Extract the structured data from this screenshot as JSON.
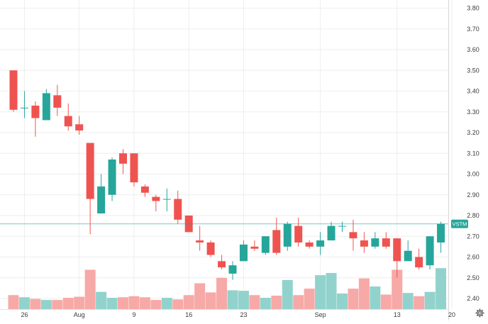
{
  "colors": {
    "up": "#26a69a",
    "down": "#ef5350",
    "up_volume": "#92d2cc",
    "down_volume": "#f7a9a7",
    "grid": "#eeeeee",
    "axis_text": "#3b3b3b",
    "last_price_line": "#26a69a"
  },
  "settings_icon": "gear-icon",
  "chart_data": {
    "type": "candlestick",
    "symbol": "VSTM",
    "last_price_label": "VSTM",
    "last_price": 2.76,
    "y_range": [
      2.37,
      3.85
    ],
    "y_ticks": [
      "3.80",
      "3.70",
      "3.60",
      "3.50",
      "3.40",
      "3.30",
      "3.20",
      "3.10",
      "3.00",
      "2.90",
      "2.80",
      "2.70",
      "2.60",
      "2.50",
      "2.40"
    ],
    "x_labels": [
      {
        "index": 1,
        "label": "26"
      },
      {
        "index": 6,
        "label": "Aug"
      },
      {
        "index": 11,
        "label": "9"
      },
      {
        "index": 16,
        "label": "16"
      },
      {
        "index": 21,
        "label": "23"
      },
      {
        "index": 28,
        "label": "Sep"
      },
      {
        "index": 35,
        "label": "13"
      },
      {
        "index": 40,
        "label": "20"
      }
    ],
    "volume_scale_max": 1.0,
    "candles": [
      {
        "o": 3.5,
        "h": 3.5,
        "l": 3.3,
        "c": 3.31,
        "v": 0.26
      },
      {
        "o": 3.32,
        "h": 3.4,
        "l": 3.27,
        "c": 3.32,
        "v": 0.22
      },
      {
        "o": 3.33,
        "h": 3.35,
        "l": 3.18,
        "c": 3.27,
        "v": 0.19
      },
      {
        "o": 3.26,
        "h": 3.41,
        "l": 3.26,
        "c": 3.39,
        "v": 0.17
      },
      {
        "o": 3.38,
        "h": 3.43,
        "l": 3.28,
        "c": 3.32,
        "v": 0.17
      },
      {
        "o": 3.28,
        "h": 3.34,
        "l": 3.21,
        "c": 3.23,
        "v": 0.21
      },
      {
        "o": 3.24,
        "h": 3.28,
        "l": 3.19,
        "c": 3.21,
        "v": 0.23
      },
      {
        "o": 3.15,
        "h": 3.15,
        "l": 2.71,
        "c": 2.88,
        "v": 0.73
      },
      {
        "o": 2.81,
        "h": 3.0,
        "l": 2.81,
        "c": 2.94,
        "v": 0.32
      },
      {
        "o": 2.9,
        "h": 3.08,
        "l": 2.87,
        "c": 3.07,
        "v": 0.21
      },
      {
        "o": 3.1,
        "h": 3.12,
        "l": 3.0,
        "c": 3.05,
        "v": 0.22
      },
      {
        "o": 3.1,
        "h": 3.1,
        "l": 2.94,
        "c": 2.96,
        "v": 0.24
      },
      {
        "o": 2.94,
        "h": 2.95,
        "l": 2.89,
        "c": 2.91,
        "v": 0.22
      },
      {
        "o": 2.89,
        "h": 2.9,
        "l": 2.82,
        "c": 2.87,
        "v": 0.17
      },
      {
        "o": 2.88,
        "h": 2.93,
        "l": 2.82,
        "c": 2.88,
        "v": 0.21
      },
      {
        "o": 2.88,
        "h": 2.92,
        "l": 2.76,
        "c": 2.78,
        "v": 0.18
      },
      {
        "o": 2.8,
        "h": 2.8,
        "l": 2.72,
        "c": 2.72,
        "v": 0.26
      },
      {
        "o": 2.68,
        "h": 2.75,
        "l": 2.63,
        "c": 2.67,
        "v": 0.48
      },
      {
        "o": 2.67,
        "h": 2.68,
        "l": 2.6,
        "c": 2.61,
        "v": 0.31
      },
      {
        "o": 2.58,
        "h": 2.61,
        "l": 2.54,
        "c": 2.55,
        "v": 0.58
      },
      {
        "o": 2.52,
        "h": 2.58,
        "l": 2.49,
        "c": 2.56,
        "v": 0.35
      },
      {
        "o": 2.58,
        "h": 2.68,
        "l": 2.58,
        "c": 2.66,
        "v": 0.34
      },
      {
        "o": 2.65,
        "h": 2.68,
        "l": 2.63,
        "c": 2.64,
        "v": 0.26
      },
      {
        "o": 2.62,
        "h": 2.7,
        "l": 2.61,
        "c": 2.7,
        "v": 0.21
      },
      {
        "o": 2.73,
        "h": 2.79,
        "l": 2.61,
        "c": 2.62,
        "v": 0.25
      },
      {
        "o": 2.65,
        "h": 2.77,
        "l": 2.63,
        "c": 2.76,
        "v": 0.54
      },
      {
        "o": 2.75,
        "h": 2.79,
        "l": 2.65,
        "c": 2.67,
        "v": 0.26
      },
      {
        "o": 2.67,
        "h": 2.68,
        "l": 2.64,
        "c": 2.65,
        "v": 0.38
      },
      {
        "o": 2.65,
        "h": 2.72,
        "l": 2.61,
        "c": 2.68,
        "v": 0.63
      },
      {
        "o": 2.68,
        "h": 2.77,
        "l": 2.68,
        "c": 2.75,
        "v": 0.67
      },
      {
        "o": 2.75,
        "h": 2.77,
        "l": 2.72,
        "c": 2.75,
        "v": 0.29
      },
      {
        "o": 2.72,
        "h": 2.78,
        "l": 2.63,
        "c": 2.69,
        "v": 0.38
      },
      {
        "o": 2.68,
        "h": 2.72,
        "l": 2.62,
        "c": 2.65,
        "v": 0.57
      },
      {
        "o": 2.65,
        "h": 2.72,
        "l": 2.64,
        "c": 2.69,
        "v": 0.42
      },
      {
        "o": 2.69,
        "h": 2.72,
        "l": 2.64,
        "c": 2.65,
        "v": 0.27
      },
      {
        "o": 2.69,
        "h": 2.69,
        "l": 2.5,
        "c": 2.58,
        "v": 0.73
      },
      {
        "o": 2.58,
        "h": 2.68,
        "l": 2.58,
        "c": 2.63,
        "v": 0.3
      },
      {
        "o": 2.6,
        "h": 2.64,
        "l": 2.54,
        "c": 2.55,
        "v": 0.24
      },
      {
        "o": 2.56,
        "h": 2.7,
        "l": 2.54,
        "c": 2.7,
        "v": 0.32
      },
      {
        "o": 2.67,
        "h": 2.77,
        "l": 2.62,
        "c": 2.76,
        "v": 0.76
      }
    ]
  }
}
